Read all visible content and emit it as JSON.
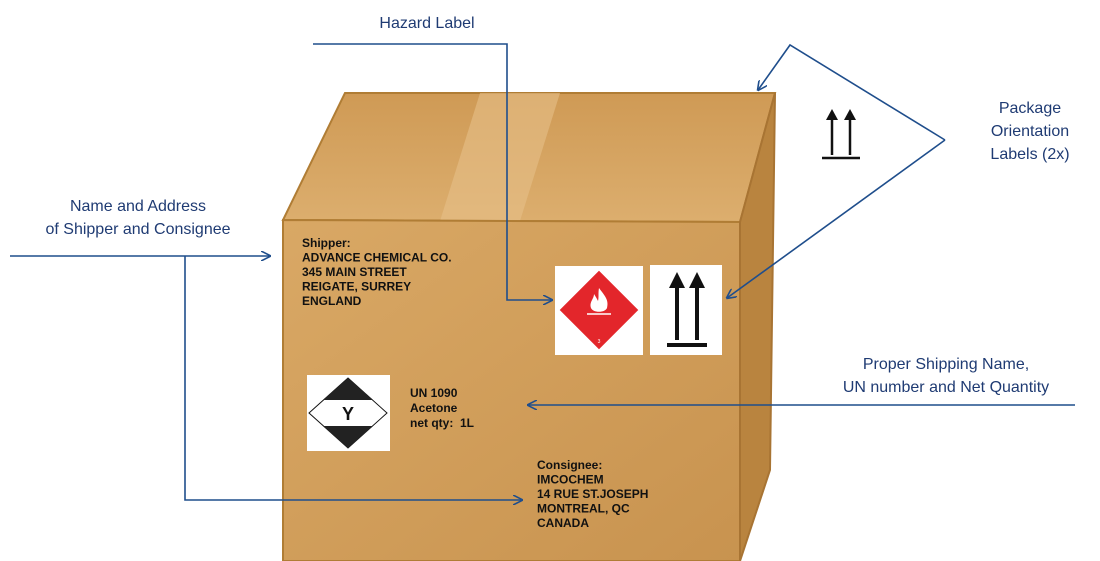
{
  "callouts": {
    "hazard_label": "Hazard Label",
    "orientation_labels": [
      "Package",
      "Orientation",
      "Labels (2x)"
    ],
    "name_address": [
      "Name and Address",
      "of Shipper and Consignee"
    ],
    "shipping_name": [
      "Proper Shipping Name,",
      "UN number and Net Quantity"
    ]
  },
  "box": {
    "shipper": [
      "Shipper:",
      "ADVANCE CHEMICAL CO.",
      "345 MAIN STREET",
      "REIGATE, SURREY",
      "ENGLAND"
    ],
    "un_info": [
      "UN 1090",
      "Acetone",
      "net qty:  1L"
    ],
    "consignee": [
      "Consignee:",
      "IMCOCHEM",
      "14 RUE ST.JOSEPH",
      "MONTREAL, QC",
      "CANADA"
    ],
    "limited_quantity_mark": "Y",
    "hazard_class": "3"
  }
}
